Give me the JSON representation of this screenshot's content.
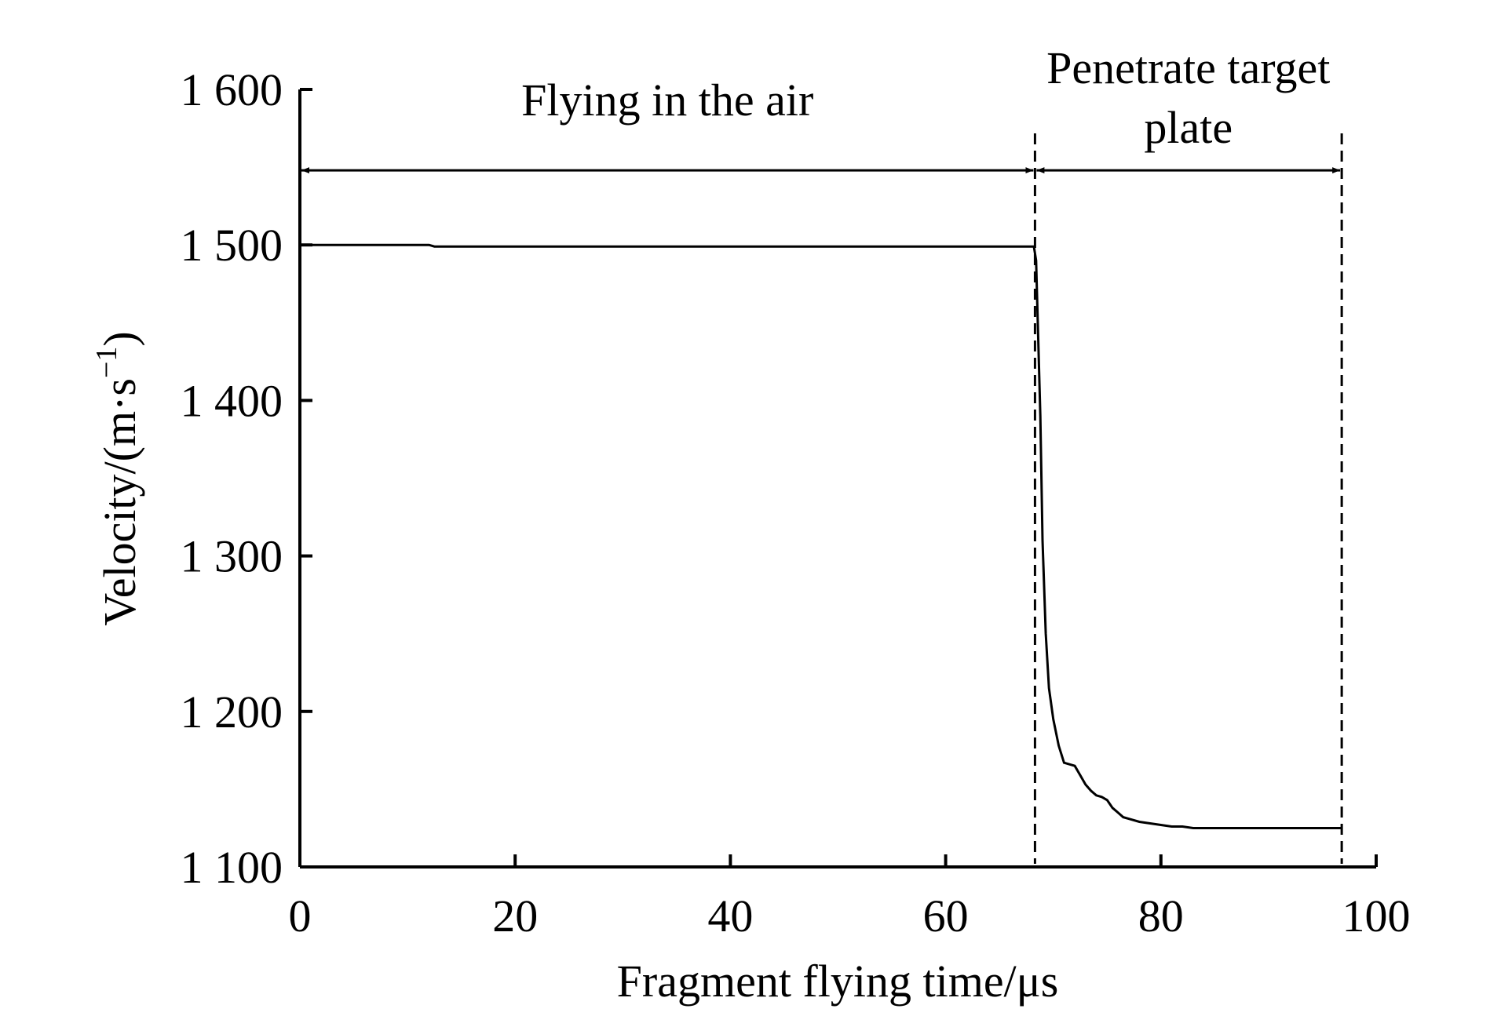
{
  "chart_data": {
    "type": "line",
    "xlabel": "Fragment flying time/μs",
    "ylabel": "Velocity/(m·s",
    "ylabel_exponent": "−1",
    "ylabel_close": ")",
    "xlim": [
      0,
      100
    ],
    "ylim": [
      1100,
      1600
    ],
    "x_ticks": [
      0,
      20,
      40,
      60,
      80,
      100
    ],
    "x_tick_labels": [
      "0",
      "20",
      "40",
      "60",
      "80",
      "100"
    ],
    "y_ticks": [
      1100,
      1200,
      1300,
      1400,
      1500,
      1600
    ],
    "y_tick_labels": [
      "1 100",
      "1 200",
      "1 300",
      "1 400",
      "1 500",
      "1 600"
    ],
    "grid": false,
    "series": [
      {
        "color": "#000000",
        "x": [
          0,
          12,
          12.5,
          30,
          50,
          68.2,
          68.4,
          68.6,
          68.8,
          69.0,
          69.3,
          69.6,
          70.0,
          70.5,
          71.0,
          71.5,
          72.0,
          72.5,
          73.0,
          73.5,
          74.0,
          74.5,
          75.0,
          75.5,
          76.0,
          76.5,
          77.0,
          78.0,
          79.0,
          80.0,
          81.0,
          82.0,
          83.0,
          85.0,
          90.0,
          96.8
        ],
        "y": [
          1500,
          1500,
          1499,
          1499,
          1499,
          1499,
          1490,
          1440,
          1390,
          1310,
          1250,
          1215,
          1195,
          1178,
          1167,
          1166,
          1165,
          1159,
          1153,
          1149,
          1146,
          1145,
          1143,
          1138,
          1135,
          1132,
          1131,
          1129,
          1128,
          1127,
          1126,
          1126,
          1125,
          1125,
          1125,
          1125
        ]
      }
    ],
    "vlines": [
      68.3,
      96.8
    ],
    "annotations": [
      {
        "id": "air",
        "text_lines": [
          "Flying in the air"
        ],
        "x_start": 0,
        "x_end": 68.3,
        "y": 1548
      },
      {
        "id": "plate",
        "text_lines": [
          "Penetrate target",
          "plate"
        ],
        "x_start": 68.3,
        "x_end": 96.8,
        "y": 1548
      }
    ]
  }
}
